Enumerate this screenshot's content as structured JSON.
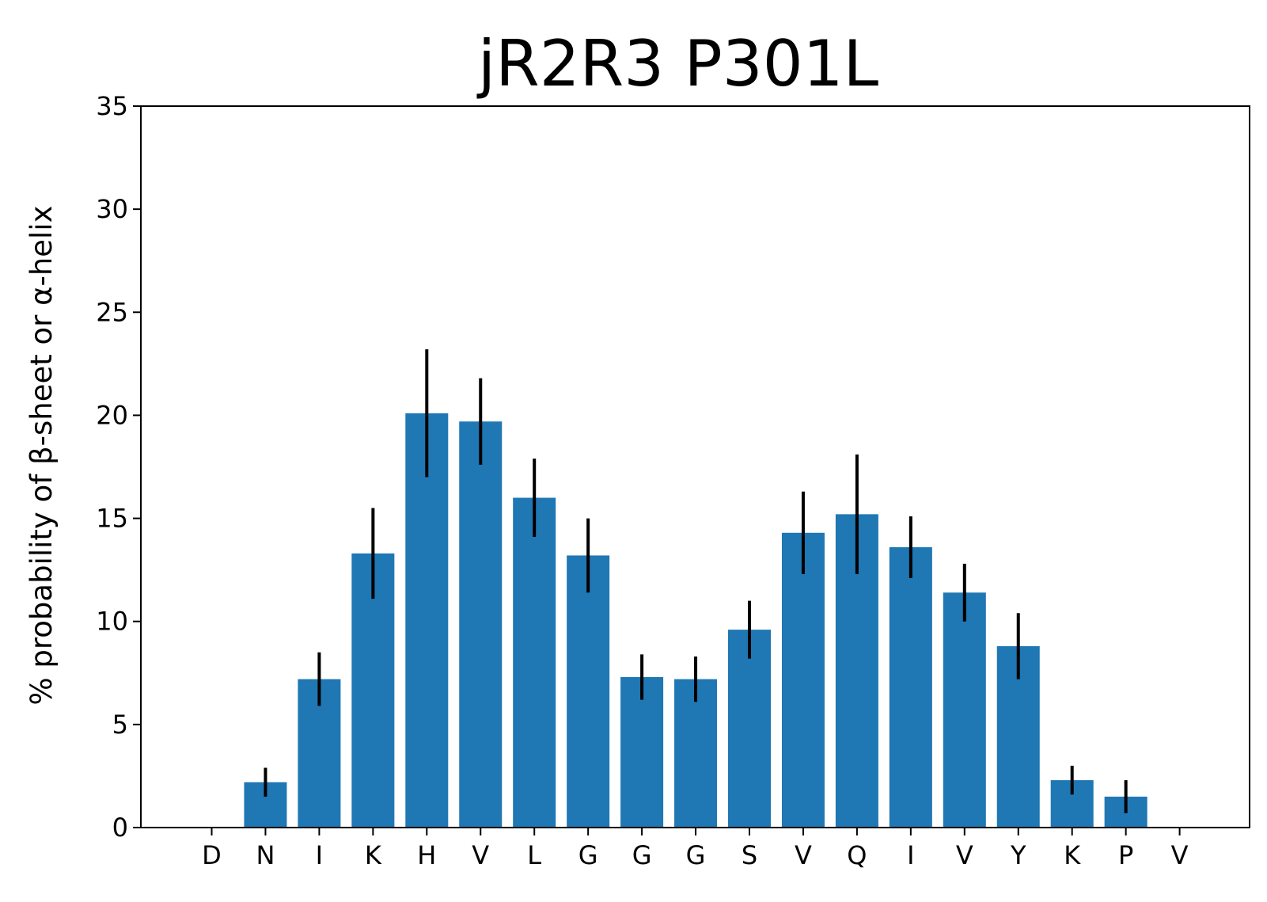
{
  "chart_data": {
    "type": "bar",
    "title": "jR2R3 P301L",
    "xlabel": "",
    "ylabel": "% probability of β-sheet or α-helix",
    "ylim": [
      0,
      35
    ],
    "yticks": [
      0,
      5,
      10,
      15,
      20,
      25,
      30,
      35
    ],
    "categories": [
      "D",
      "N",
      "I",
      "K",
      "H",
      "V",
      "L",
      "G",
      "G",
      "G",
      "S",
      "V",
      "Q",
      "I",
      "V",
      "Y",
      "K",
      "P",
      "V"
    ],
    "values": [
      0,
      2.2,
      7.2,
      13.3,
      20.1,
      19.7,
      16.0,
      13.2,
      7.3,
      7.2,
      9.6,
      14.3,
      15.2,
      13.6,
      11.4,
      8.8,
      2.3,
      1.5,
      0
    ],
    "errors": [
      0,
      0.7,
      1.3,
      2.2,
      3.1,
      2.1,
      1.9,
      1.8,
      1.1,
      1.1,
      1.4,
      2.0,
      2.9,
      1.5,
      1.4,
      1.6,
      0.7,
      0.8,
      0
    ],
    "bar_color": "#1f77b4",
    "error_color": "#000000",
    "grid": false
  }
}
